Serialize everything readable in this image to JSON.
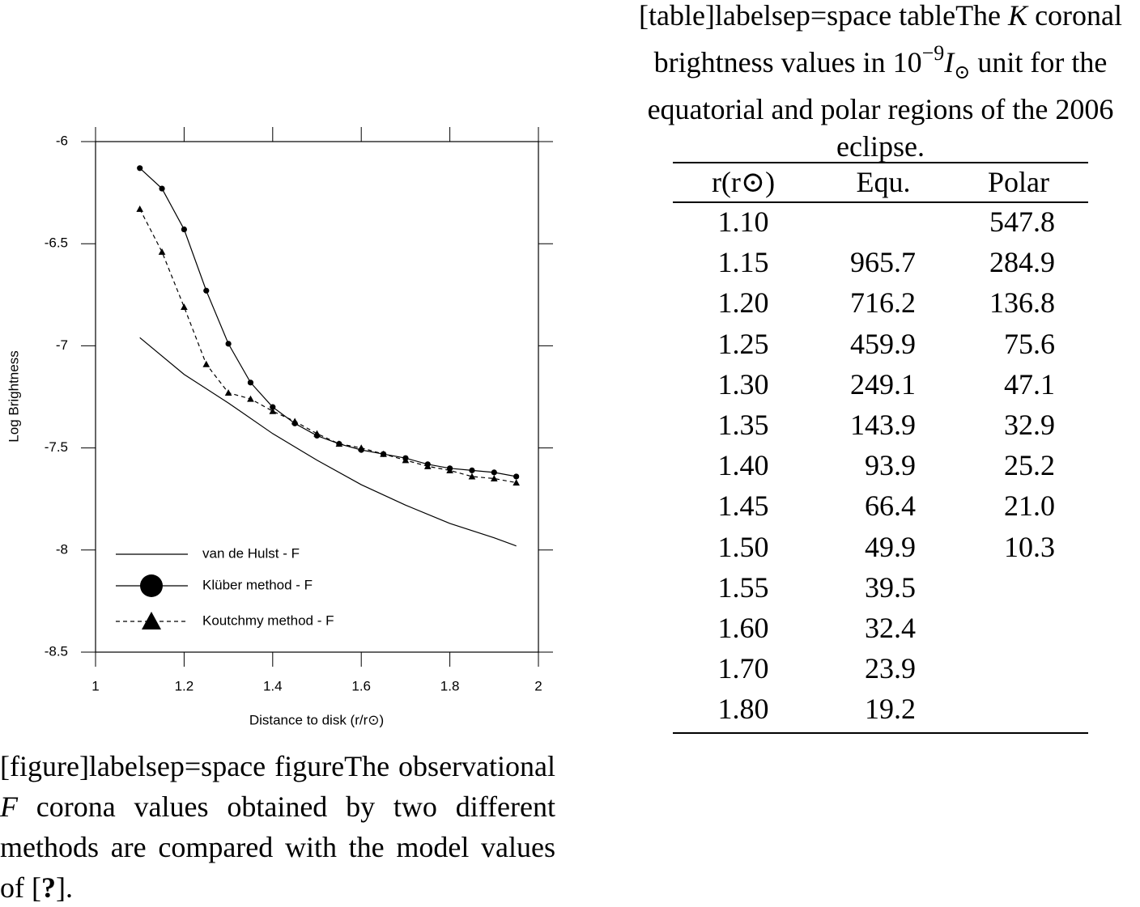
{
  "chart_data": {
    "type": "line",
    "xlabel": "Distance to disk (r/r⊙)",
    "ylabel": "Log Brightness",
    "xlim": [
      1,
      2
    ],
    "xticks": [
      1,
      1.2,
      1.4,
      1.6,
      1.8,
      2
    ],
    "ylim": [
      -8.5,
      -6
    ],
    "yticks": [
      -6,
      -6.5,
      -7,
      -7.5,
      -8,
      -8.5
    ],
    "series": [
      {
        "name": "van de Hulst - F",
        "color": "#000000",
        "dash": "solid",
        "marker": null,
        "x": [
          1.1,
          1.2,
          1.3,
          1.4,
          1.5,
          1.6,
          1.7,
          1.8,
          1.9,
          1.95
        ],
        "values": [
          -6.96,
          -7.14,
          -7.28,
          -7.43,
          -7.56,
          -7.68,
          -7.78,
          -7.87,
          -7.94,
          -7.98
        ]
      },
      {
        "name": "Klüber method - F",
        "color": "#000000",
        "dash": "solid",
        "marker": "circle",
        "x": [
          1.1,
          1.15,
          1.2,
          1.25,
          1.3,
          1.35,
          1.4,
          1.45,
          1.5,
          1.55,
          1.6,
          1.65,
          1.7,
          1.75,
          1.8,
          1.85,
          1.9,
          1.95
        ],
        "values": [
          -6.13,
          -6.23,
          -6.43,
          -6.73,
          -6.99,
          -7.18,
          -7.3,
          -7.38,
          -7.44,
          -7.48,
          -7.51,
          -7.53,
          -7.55,
          -7.58,
          -7.6,
          -7.61,
          -7.62,
          -7.64
        ]
      },
      {
        "name": "Koutchmy method - F",
        "color": "#000000",
        "dash": "dashed",
        "marker": "triangle",
        "x": [
          1.1,
          1.15,
          1.2,
          1.25,
          1.3,
          1.35,
          1.4,
          1.45,
          1.5,
          1.55,
          1.6,
          1.65,
          1.7,
          1.75,
          1.8,
          1.85,
          1.9,
          1.95
        ],
        "values": [
          -6.33,
          -6.54,
          -6.81,
          -7.09,
          -7.23,
          -7.26,
          -7.32,
          -7.37,
          -7.43,
          -7.48,
          -7.5,
          -7.53,
          -7.56,
          -7.59,
          -7.61,
          -7.64,
          -7.65,
          -7.67
        ]
      }
    ]
  },
  "figure_caption": [
    "[figure]labelsep=space figureThe observational ",
    "F",
    " corona values obtained by two different methods are compared with the model values of [",
    "?",
    "]."
  ],
  "table_caption": [
    "[table]labelsep=space tableThe ",
    "K",
    " coronal brightness values in 10",
    "−9",
    "I",
    "⊙",
    " unit for the equatorial and polar regions of the 2006 eclipse."
  ],
  "table": {
    "header": [
      "r(r⊙)",
      "Equ.",
      "Polar"
    ],
    "rows": [
      [
        "1.10",
        null,
        "547.8"
      ],
      [
        "1.15",
        "965.7",
        "284.9"
      ],
      [
        "1.20",
        "716.2",
        "136.8"
      ],
      [
        "1.25",
        "459.9",
        "75.6"
      ],
      [
        "1.30",
        "249.1",
        "47.1"
      ],
      [
        "1.35",
        "143.9",
        "32.9"
      ],
      [
        "1.40",
        "93.9",
        "25.2"
      ],
      [
        "1.45",
        "66.4",
        "21.0"
      ],
      [
        "1.50",
        "49.9",
        "10.3"
      ],
      [
        "1.55",
        "39.5",
        null
      ],
      [
        "1.60",
        "32.4",
        null
      ],
      [
        "1.70",
        "23.9",
        null
      ],
      [
        "1.80",
        "19.2",
        null
      ]
    ]
  }
}
